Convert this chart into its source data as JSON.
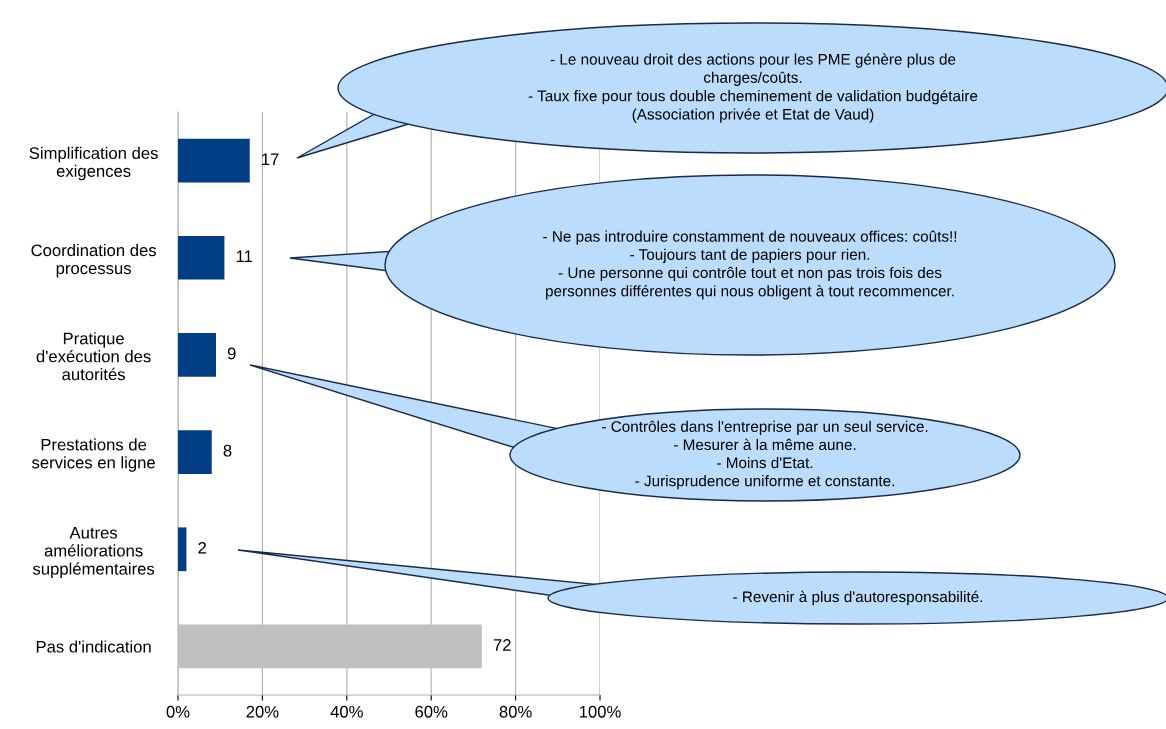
{
  "chart_data": {
    "type": "bar",
    "orientation": "horizontal",
    "categories": [
      "Simplification des\nexigences",
      "Coordination des\nprocessus",
      "Pratique\nd'exécution des\nautorités",
      "Prestations de\nservices en ligne",
      "Autres\naméliorations\nsupplémentaires",
      "Pas d'indication"
    ],
    "values": [
      17,
      11,
      9,
      8,
      2,
      72
    ],
    "colors": [
      "#003d85",
      "#003d85",
      "#003d85",
      "#003d85",
      "#003d85",
      "#c0c0c0"
    ],
    "data_labels": true,
    "xlim": [
      0,
      100
    ],
    "xticks": [
      {
        "value": 0,
        "label": "0%"
      },
      {
        "value": 20,
        "label": "20%"
      },
      {
        "value": 40,
        "label": "40%"
      },
      {
        "value": 60,
        "label": "60%"
      },
      {
        "value": 80,
        "label": "80%"
      },
      {
        "value": 100,
        "label": "100%"
      }
    ],
    "grid": "x",
    "annotations": [
      "- Le nouveau droit des actions pour les PME génère plus de\ncharges/coûts.\n- Taux fixe pour tous double cheminement de validation budgétaire\n(Association privée et Etat de Vaud)",
      "- Ne pas introduire constamment de nouveaux offices: coûts!!\n- Toujours tant de papiers pour rien.\n- Une personne qui contrôle tout et non pas trois fois des\npersonnes différentes qui nous obligent à tout recommencer.",
      "- Contrôles dans l'entreprise par un seul service.\n- Mesurer à la même aune.\n- Moins d'Etat.\n- Jurisprudence uniforme et constante.",
      "- Revenir à plus d'autoresponsabilité."
    ]
  }
}
